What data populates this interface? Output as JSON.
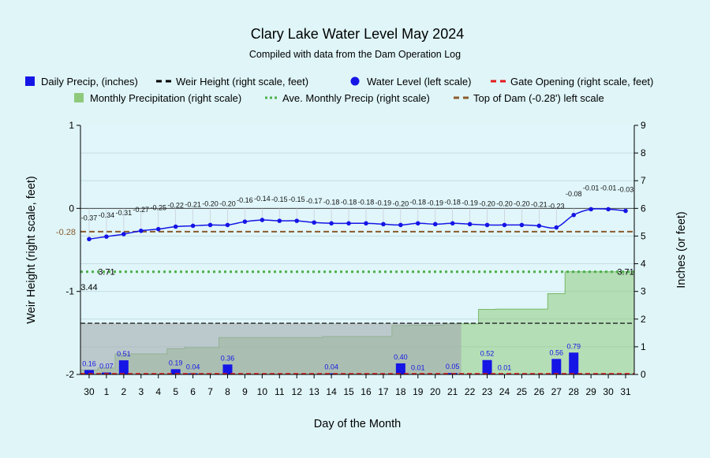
{
  "chart_data": {
    "type": "line",
    "title": "Clary Lake Water Level May 2024",
    "subtitle": "Compiled with data from the Dam Operation Log",
    "xlabel": "Day of the Month",
    "ylabel_left": "Weir Height (right scale, feet)",
    "ylabel_right": "Inches (or feet)",
    "ylim_left": [
      -2,
      1
    ],
    "ylim_right": [
      0,
      9
    ],
    "yticks_left": [
      "1",
      "0",
      "-1",
      "-2"
    ],
    "yticks_right": [
      "9",
      "8",
      "7",
      "6",
      "5",
      "4",
      "3",
      "2",
      "1",
      "0"
    ],
    "categories": [
      "30",
      "1",
      "2",
      "3",
      "4",
      "5",
      "6",
      "7",
      "8",
      "9",
      "10",
      "11",
      "12",
      "13",
      "14",
      "15",
      "16",
      "17",
      "18",
      "19",
      "20",
      "21",
      "22",
      "23",
      "24",
      "25",
      "26",
      "27",
      "28",
      "29",
      "30",
      "31"
    ],
    "legend": [
      {
        "label": "Daily Precip, (inches)",
        "symbol": "square",
        "color": "#1515e6"
      },
      {
        "label": "Weir Height (right scale, feet)",
        "symbol": "dash",
        "color": "#000000"
      },
      {
        "label": "Water Level (left scale)",
        "symbol": "circle",
        "color": "#1515e6"
      },
      {
        "label": "Gate Opening (right scale, feet)",
        "symbol": "dash",
        "color": "#e31a1c"
      },
      {
        "label": "Monthly Precipitation (right scale)",
        "symbol": "square",
        "color": "#8fca7c"
      },
      {
        "label": "Ave. Monthly Precip (right scale)",
        "symbol": "dot",
        "color": "#4daf4a"
      },
      {
        "label": "Top of Dam (-0.28') left scale",
        "symbol": "dash",
        "color": "#8b5a2b"
      }
    ],
    "series": [
      {
        "name": "Water Level (left scale)",
        "axis": "left",
        "values": [
          -0.37,
          -0.34,
          -0.31,
          -0.27,
          -0.25,
          -0.22,
          -0.21,
          -0.2,
          -0.2,
          -0.16,
          -0.14,
          -0.15,
          -0.15,
          -0.17,
          -0.18,
          -0.18,
          -0.18,
          -0.19,
          -0.2,
          -0.18,
          -0.19,
          -0.18,
          -0.19,
          -0.2,
          -0.2,
          -0.2,
          -0.21,
          -0.23,
          -0.08,
          -0.01,
          -0.01,
          -0.03
        ],
        "labels": [
          "-0.37",
          "-0.34",
          "-0.31",
          "-0.27",
          "-0.25",
          "-0.22",
          "-0.21",
          "-0.20",
          "-0.20",
          "-0.16",
          "-0.14",
          "-0.15",
          "-0.15",
          "-0.17",
          "-0.18",
          "-0.18",
          "-0.18",
          "-0.19",
          "-0.20",
          "-0.18",
          "-0.19",
          "-0.18",
          "-0.19",
          "-0.20",
          "-0.20",
          "-0.20",
          "-0.21",
          "-0.23",
          "-0.08",
          "-0.01",
          "-0.01",
          "-0.03"
        ],
        "color": "#1515e6"
      },
      {
        "name": "Daily Precip, (inches)",
        "axis": "right",
        "values": [
          0.16,
          0.07,
          0.51,
          0,
          0,
          0.19,
          0.04,
          0,
          0.36,
          0,
          0,
          0,
          0,
          0,
          0.04,
          0,
          0,
          0,
          0.4,
          0.01,
          0,
          0.05,
          0,
          0.52,
          0.01,
          0,
          0,
          0.56,
          0.79,
          0,
          0,
          0
        ],
        "labels": [
          "0.16",
          "0.07",
          "0.51",
          "",
          "",
          "0.19",
          "0.04",
          "",
          "0.36",
          "",
          "",
          "",
          "",
          "",
          "0.04",
          "",
          "",
          "",
          "0.40",
          "0.01",
          "",
          "0.05",
          "",
          "0.52",
          "0.01",
          "",
          "",
          "0.56",
          "0.79",
          "",
          "",
          ""
        ],
        "color": "#1515e6"
      },
      {
        "name": "Monthly Precipitation (right scale)",
        "axis": "right",
        "values": [
          0.16,
          0.23,
          0.74,
          0.74,
          0.74,
          0.93,
          0.97,
          0.97,
          1.33,
          1.33,
          1.33,
          1.33,
          1.33,
          1.33,
          1.37,
          1.37,
          1.37,
          1.37,
          1.77,
          1.78,
          1.78,
          1.83,
          1.83,
          2.35,
          2.36,
          2.36,
          2.36,
          2.92,
          3.71,
          3.71,
          3.71,
          3.71
        ],
        "color": "#8fca7c"
      },
      {
        "name": "Weir Height (right scale, feet)",
        "axis": "right",
        "value": 1.85,
        "color": "#000000"
      },
      {
        "name": "Top of Dam (-0.28') left scale",
        "axis": "left",
        "value": -0.28,
        "label": "-0.28",
        "color": "#8b5a2b"
      },
      {
        "name": "Ave. Monthly Precip (right scale)",
        "axis": "right",
        "value": 3.71,
        "labels": [
          "3.71",
          "3.71"
        ],
        "color": "#4daf4a"
      },
      {
        "name": "Gate Opening (right scale, feet)",
        "axis": "right",
        "value": 0,
        "color": "#e31a1c"
      }
    ],
    "gray_band": {
      "from_index": 0,
      "to_index": 22,
      "top": 1.85,
      "color": "#a4adb0"
    },
    "annotations": [
      {
        "text": "3.44",
        "category_index": 0
      }
    ],
    "grid": true,
    "legend_position": "top"
  }
}
